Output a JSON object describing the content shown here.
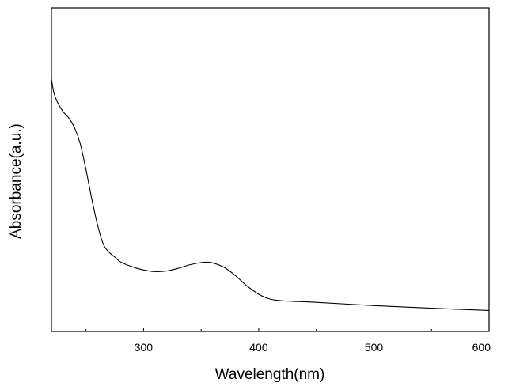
{
  "chart_data": {
    "type": "line",
    "title": "",
    "xlabel": "Wavelength(nm)",
    "ylabel": "Absorbance(a.u.)",
    "xlim": [
      220,
      600
    ],
    "ylim": [
      0,
      1
    ],
    "x_ticks": [
      300,
      400,
      500,
      600
    ],
    "x_tick_labels": [
      "300",
      "400",
      "500",
      "600"
    ],
    "y_ticks_labeled": false,
    "grid": false,
    "legend": "none",
    "line_color": "#000000",
    "series": [
      {
        "x": [
          220,
          222,
          225,
          230,
          235,
          240,
          245,
          250,
          255,
          260,
          265,
          270,
          275,
          280,
          290,
          300,
          310,
          320,
          330,
          340,
          350,
          355,
          360,
          370,
          380,
          390,
          400,
          410,
          420,
          430,
          450,
          500,
          550,
          600
        ],
        "y": [
          0.78,
          0.74,
          0.71,
          0.68,
          0.66,
          0.63,
          0.58,
          0.5,
          0.41,
          0.33,
          0.27,
          0.245,
          0.23,
          0.215,
          0.2,
          0.19,
          0.185,
          0.187,
          0.195,
          0.206,
          0.213,
          0.214,
          0.212,
          0.198,
          0.172,
          0.14,
          0.115,
          0.1,
          0.095,
          0.093,
          0.09,
          0.08,
          0.072,
          0.065
        ]
      }
    ]
  }
}
